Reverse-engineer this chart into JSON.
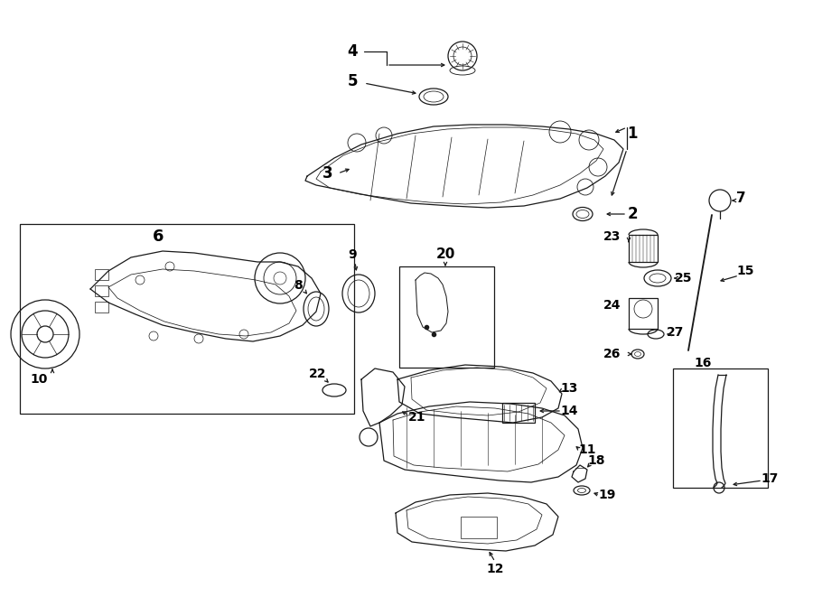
{
  "background_color": "#ffffff",
  "line_color": "#1a1a1a",
  "text_color": "#000000",
  "fig_width": 9.0,
  "fig_height": 6.61,
  "dpi": 100,
  "lw": 0.9
}
